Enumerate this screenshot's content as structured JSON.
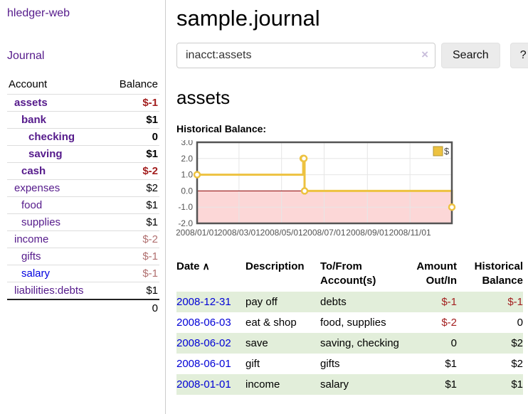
{
  "sidebar": {
    "brand": "hledger-web",
    "nav": {
      "journal": "Journal"
    },
    "accounts": {
      "header": {
        "account": "Account",
        "balance": "Balance"
      },
      "rows": [
        {
          "name": "assets",
          "indent": 0,
          "bold": true,
          "balance": "$-1",
          "neg": "strong"
        },
        {
          "name": "bank",
          "indent": 1,
          "bold": true,
          "balance": "$1",
          "neg": "none"
        },
        {
          "name": "checking",
          "indent": 2,
          "bold": true,
          "balance": "0",
          "neg": "none"
        },
        {
          "name": "saving",
          "indent": 2,
          "bold": true,
          "balance": "$1",
          "neg": "none"
        },
        {
          "name": "cash",
          "indent": 1,
          "bold": true,
          "balance": "$-2",
          "neg": "strong"
        },
        {
          "name": "expenses",
          "indent": 0,
          "bold": false,
          "balance": "$2",
          "neg": "none"
        },
        {
          "name": "food",
          "indent": 1,
          "bold": false,
          "balance": "$1",
          "neg": "none"
        },
        {
          "name": "supplies",
          "indent": 1,
          "bold": false,
          "balance": "$1",
          "neg": "none"
        },
        {
          "name": "income",
          "indent": 0,
          "bold": false,
          "balance": "$-2",
          "neg": "soft"
        },
        {
          "name": "gifts",
          "indent": 1,
          "bold": false,
          "balance": "$-1",
          "neg": "soft"
        },
        {
          "name": "salary",
          "indent": 1,
          "bold": false,
          "balance": "$-1",
          "neg": "soft",
          "link": "unvisited"
        },
        {
          "name": "liabilities:debts",
          "indent": 0,
          "bold": false,
          "balance": "$1",
          "neg": "none"
        }
      ],
      "total": "0"
    }
  },
  "header": {
    "title": "sample.journal"
  },
  "search": {
    "value": "inacct:assets",
    "clear_icon": "×",
    "button": "Search",
    "help_button": "?"
  },
  "account_page": {
    "title": "assets",
    "chart_label": "Historical Balance:"
  },
  "chart_data": {
    "type": "line",
    "style": "step",
    "title": "Historical Balance",
    "series": [
      {
        "name": "$",
        "points": [
          [
            "2008-01-01",
            1
          ],
          [
            "2008-06-01",
            2
          ],
          [
            "2008-06-02",
            2
          ],
          [
            "2008-06-03",
            0
          ],
          [
            "2008-12-31",
            -1
          ]
        ]
      }
    ],
    "ylim": [
      -2,
      3
    ],
    "yticks": [
      3.0,
      2.0,
      1.0,
      0.0,
      -1.0,
      -2.0
    ],
    "xrange": [
      "2008-01-01",
      "2008-12-31"
    ],
    "xticks": [
      {
        "date": "2008-01-01",
        "label": "2008/01/01"
      },
      {
        "date": "2008-03-01",
        "label": "2008/03/01"
      },
      {
        "date": "2008-05-01",
        "label": "2008/05/01"
      },
      {
        "date": "2008-07-01",
        "label": "2008/07/01"
      },
      {
        "date": "2008-09-01",
        "label": "2008/09/01"
      },
      {
        "date": "2008-11-01",
        "label": "2008/11/01"
      }
    ],
    "legend": {
      "label": "$",
      "position": "top-right"
    },
    "grid": true,
    "colors": {
      "line": "#edc240",
      "negative_fill": "#fcd7d7",
      "zero_line": "#8b0000",
      "grid": "#e6e6e6",
      "border": "#545454",
      "axis_text": "#545454"
    }
  },
  "register": {
    "columns": {
      "date": "Date",
      "description": "Description",
      "accounts": "To/From Account(s)",
      "amount": "Amount Out/In",
      "balance": "Historical Balance"
    },
    "sort_icon": "∧",
    "rows": [
      {
        "date": "2008-12-31",
        "description": "pay off",
        "accounts": "debts",
        "amount": "$-1",
        "amount_neg": true,
        "balance": "$-1",
        "balance_neg": true
      },
      {
        "date": "2008-06-03",
        "description": "eat & shop",
        "accounts": "food, supplies",
        "amount": "$-2",
        "amount_neg": true,
        "balance": "0",
        "balance_neg": false
      },
      {
        "date": "2008-06-02",
        "description": "save",
        "accounts": "saving, checking",
        "amount": "0",
        "amount_neg": false,
        "balance": "$2",
        "balance_neg": false
      },
      {
        "date": "2008-06-01",
        "description": "gift",
        "accounts": "gifts",
        "amount": "$1",
        "amount_neg": false,
        "balance": "$2",
        "balance_neg": false
      },
      {
        "date": "2008-01-01",
        "description": "income",
        "accounts": "salary",
        "amount": "$1",
        "amount_neg": false,
        "balance": "$1",
        "balance_neg": false
      }
    ]
  }
}
